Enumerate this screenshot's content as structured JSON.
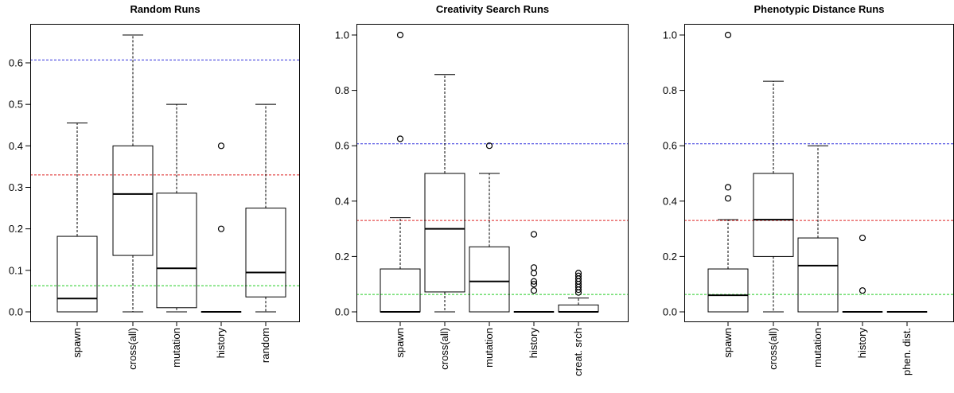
{
  "chart_data": [
    {
      "type": "box",
      "title": "Random Runs",
      "ylim": [
        0,
        0.68
      ],
      "yticks": [
        "0.0",
        "0.1",
        "0.2",
        "0.3",
        "0.4",
        "0.5",
        "0.6"
      ],
      "ytick_values": [
        0,
        0.1,
        0.2,
        0.3,
        0.4,
        0.5,
        0.6
      ],
      "categories": [
        "spawn",
        "cross(all)",
        "mutation",
        "history",
        "random"
      ],
      "boxes": [
        {
          "whisker_low": 0,
          "q1": 0,
          "median": 0.032,
          "q3": 0.182,
          "whisker_high": 0.455,
          "outliers": []
        },
        {
          "whisker_low": 0,
          "q1": 0.136,
          "median": 0.284,
          "q3": 0.4,
          "whisker_high": 0.667,
          "outliers": []
        },
        {
          "whisker_low": 0,
          "q1": 0.01,
          "median": 0.105,
          "q3": 0.286,
          "whisker_high": 0.5,
          "outliers": []
        },
        {
          "whisker_low": 0,
          "q1": 0,
          "median": 0,
          "q3": 0,
          "whisker_high": 0,
          "outliers": [
            0.2,
            0.4
          ]
        },
        {
          "whisker_low": 0,
          "q1": 0.036,
          "median": 0.095,
          "q3": 0.25,
          "whisker_high": 0.5,
          "outliers": []
        }
      ],
      "reference_lines": [
        {
          "color": "#3333dd",
          "value": 0.607
        },
        {
          "color": "#dd2222",
          "value": 0.33
        },
        {
          "color": "#22cc22",
          "value": 0.063
        }
      ]
    },
    {
      "type": "box",
      "title": "Creativity Search Runs",
      "ylim": [
        0,
        1.02
      ],
      "yticks": [
        "0.0",
        "0.2",
        "0.4",
        "0.6",
        "0.8",
        "1.0"
      ],
      "ytick_values": [
        0,
        0.2,
        0.4,
        0.6,
        0.8,
        1.0
      ],
      "categories": [
        "spawn",
        "cross(all)",
        "mutation",
        "history",
        "creat. srch"
      ],
      "boxes": [
        {
          "whisker_low": 0,
          "q1": 0,
          "median": 0,
          "q3": 0.155,
          "whisker_high": 0.34,
          "outliers": [
            0.625,
            1.0
          ]
        },
        {
          "whisker_low": 0,
          "q1": 0.072,
          "median": 0.3,
          "q3": 0.5,
          "whisker_high": 0.857,
          "outliers": []
        },
        {
          "whisker_low": 0,
          "q1": 0,
          "median": 0.11,
          "q3": 0.235,
          "whisker_high": 0.5,
          "outliers": [
            0.6
          ]
        },
        {
          "whisker_low": 0,
          "q1": 0,
          "median": 0,
          "q3": 0,
          "whisker_high": 0,
          "outliers": [
            0.077,
            0.1,
            0.11,
            0.14,
            0.16,
            0.28
          ]
        },
        {
          "whisker_low": 0,
          "q1": 0,
          "median": 0,
          "q3": 0.025,
          "whisker_high": 0.05,
          "outliers": [
            0.07,
            0.08,
            0.09,
            0.1,
            0.11,
            0.12,
            0.13,
            0.14
          ]
        }
      ],
      "reference_lines": [
        {
          "color": "#3333dd",
          "value": 0.607
        },
        {
          "color": "#dd2222",
          "value": 0.33
        },
        {
          "color": "#22cc22",
          "value": 0.063
        }
      ]
    },
    {
      "type": "box",
      "title": "Phenotypic Distance Runs",
      "ylim": [
        0,
        1.02
      ],
      "yticks": [
        "0.0",
        "0.2",
        "0.4",
        "0.6",
        "0.8",
        "1.0"
      ],
      "ytick_values": [
        0,
        0.2,
        0.4,
        0.6,
        0.8,
        1.0
      ],
      "categories": [
        "spawn",
        "cross(all)",
        "mutation",
        "history",
        "phen. dist."
      ],
      "boxes": [
        {
          "whisker_low": 0,
          "q1": 0,
          "median": 0.06,
          "q3": 0.155,
          "whisker_high": 0.333,
          "outliers": [
            0.41,
            0.45,
            1.0
          ]
        },
        {
          "whisker_low": 0,
          "q1": 0.2,
          "median": 0.333,
          "q3": 0.5,
          "whisker_high": 0.833,
          "outliers": []
        },
        {
          "whisker_low": 0,
          "q1": 0,
          "median": 0.167,
          "q3": 0.267,
          "whisker_high": 0.6,
          "outliers": []
        },
        {
          "whisker_low": 0,
          "q1": 0,
          "median": 0,
          "q3": 0,
          "whisker_high": 0,
          "outliers": [
            0.077,
            0.267
          ]
        },
        {
          "whisker_low": 0,
          "q1": 0,
          "median": 0,
          "q3": 0,
          "whisker_high": 0,
          "outliers": []
        }
      ],
      "reference_lines": [
        {
          "color": "#3333dd",
          "value": 0.607
        },
        {
          "color": "#dd2222",
          "value": 0.33
        },
        {
          "color": "#22cc22",
          "value": 0.063
        }
      ]
    }
  ]
}
